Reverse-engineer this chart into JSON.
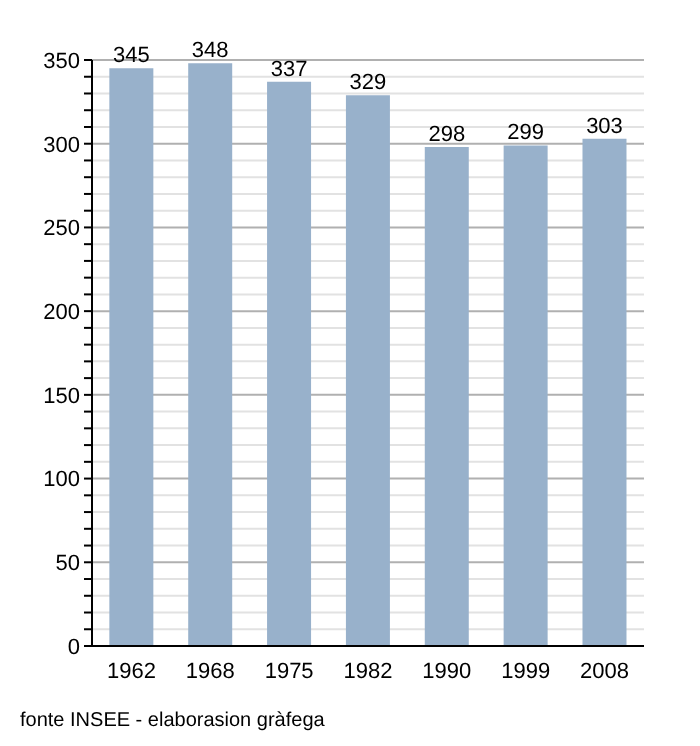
{
  "chart_data": {
    "type": "bar",
    "categories": [
      "1962",
      "1968",
      "1975",
      "1982",
      "1990",
      "1999",
      "2008"
    ],
    "values": [
      345,
      348,
      337,
      329,
      298,
      299,
      303
    ],
    "color": "#98b1cb",
    "data_labels": true,
    "ylim": [
      0,
      350
    ],
    "yticks": [
      0,
      {
        "value": 10,
        "label": null
      },
      {
        "value": 20,
        "label": null
      },
      {
        "value": 30,
        "label": null
      },
      {
        "value": 40,
        "label": null
      },
      50,
      {
        "value": 60,
        "label": null
      },
      {
        "value": 70,
        "label": null
      },
      {
        "value": 80,
        "label": null
      },
      {
        "value": 90,
        "label": null
      },
      100,
      {
        "value": 110,
        "label": null
      },
      {
        "value": 120,
        "label": null
      },
      {
        "value": 130,
        "label": null
      },
      {
        "value": 140,
        "label": null
      },
      150,
      {
        "value": 160,
        "label": null
      },
      {
        "value": 170,
        "label": null
      },
      {
        "value": 180,
        "label": null
      },
      {
        "value": 190,
        "label": null
      },
      200,
      {
        "value": 210,
        "label": null
      },
      {
        "value": 220,
        "label": null
      },
      {
        "value": 230,
        "label": null
      },
      {
        "value": 240,
        "label": null
      },
      250,
      {
        "value": 260,
        "label": null
      },
      {
        "value": 270,
        "label": null
      },
      {
        "value": 280,
        "label": null
      },
      {
        "value": 290,
        "label": null
      },
      300,
      {
        "value": 310,
        "label": null
      },
      {
        "value": 320,
        "label": null
      },
      {
        "value": 330,
        "label": null
      },
      {
        "value": 340,
        "label": null
      },
      350
    ],
    "grid": "y",
    "annotations": [
      "fonte INSEE - elaborasion gràfega"
    ]
  }
}
